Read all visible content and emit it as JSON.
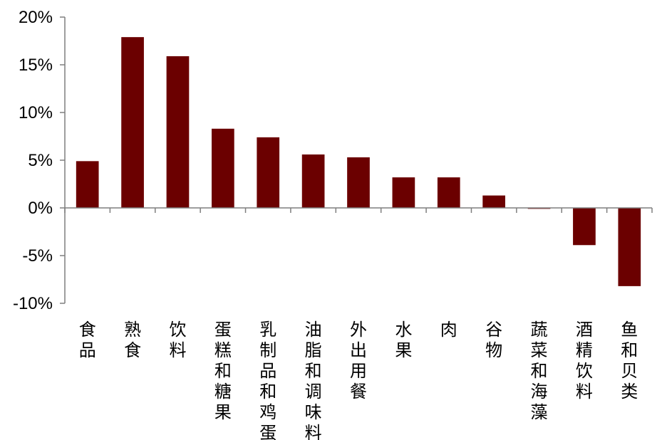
{
  "chart_data": {
    "type": "bar",
    "title": "",
    "xlabel": "",
    "ylabel": "",
    "ylim": [
      -10,
      20
    ],
    "yticks": [
      -10,
      -5,
      0,
      5,
      10,
      15,
      20
    ],
    "ytick_labels": [
      "-10%",
      "-5%",
      "0%",
      "5%",
      "10%",
      "15%",
      "20%"
    ],
    "grid": false,
    "legend": "none",
    "bar_color": "#6b0000",
    "categories": [
      "食品",
      "熟食",
      "饮料",
      "蛋糕和糖果",
      "乳制品和鸡蛋",
      "油脂和调味料",
      "外出用餐",
      "水果",
      "肉",
      "谷物",
      "蔬菜和海藻",
      "酒精饮料",
      "鱼和贝类"
    ],
    "values": [
      4.9,
      17.9,
      15.9,
      8.3,
      7.4,
      5.6,
      5.3,
      3.2,
      3.2,
      1.3,
      -0.1,
      -3.9,
      -8.2
    ]
  }
}
